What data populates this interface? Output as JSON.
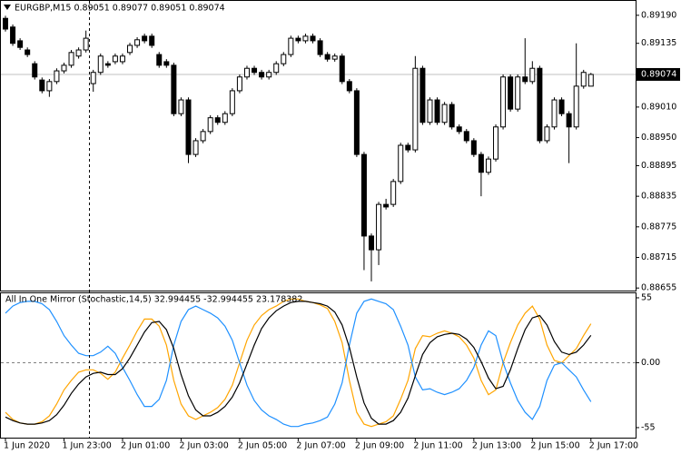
{
  "chart_data": [
    {
      "type": "candlestick",
      "title": "EURGBP,M15  0.89051 0.89077 0.89051 0.89074",
      "open": [
        0.89184,
        0.89167,
        0.8914,
        0.89122,
        0.89095,
        0.89063,
        0.89042,
        0.8906,
        0.89081,
        0.89092,
        0.8911,
        0.89122,
        0.89056,
        0.89078,
        0.89095,
        0.89099,
        0.89099,
        0.89117,
        0.89131,
        0.89149,
        0.89149,
        0.89113,
        0.89099,
        0.89092,
        0.88997,
        0.89024,
        0.88917,
        0.88944,
        0.88962,
        0.88989,
        0.8898,
        0.88997,
        0.89042,
        0.89069,
        0.89086,
        0.89078,
        0.89069,
        0.89078,
        0.89095,
        0.89113,
        0.89145,
        0.8914,
        0.89149,
        0.8914,
        0.89113,
        0.89104,
        0.8911,
        0.8906,
        0.89042,
        0.88917,
        0.88757,
        0.8873,
        0.88819,
        0.88819,
        0.88864,
        0.88935,
        0.88926,
        0.89086,
        0.8898,
        0.89024,
        0.8898,
        0.89015,
        0.88971,
        0.88962,
        0.88944,
        0.88917,
        0.88882,
        0.88908,
        0.88971,
        0.89069,
        0.89006,
        0.89069,
        0.8906,
        0.89086,
        0.88944,
        0.88971,
        0.89024,
        0.88997,
        0.88971,
        0.89051,
        0.89051
      ],
      "high": [
        0.89189,
        0.89172,
        0.89145,
        0.89127,
        0.891,
        0.89068,
        0.89065,
        0.89086,
        0.89097,
        0.89122,
        0.89127,
        0.8916,
        0.89083,
        0.89115,
        0.891,
        0.89115,
        0.89115,
        0.89136,
        0.89147,
        0.89154,
        0.89154,
        0.89118,
        0.89104,
        0.89097,
        0.89029,
        0.89029,
        0.88949,
        0.88967,
        0.88994,
        0.88994,
        0.89002,
        0.89047,
        0.89074,
        0.89091,
        0.89091,
        0.89083,
        0.89083,
        0.891,
        0.89118,
        0.8915,
        0.8915,
        0.89154,
        0.89154,
        0.89145,
        0.89118,
        0.89115,
        0.89115,
        0.89065,
        0.89047,
        0.88922,
        0.88762,
        0.88824,
        0.8883,
        0.88869,
        0.8894,
        0.8894,
        0.8911,
        0.89091,
        0.89029,
        0.89029,
        0.8902,
        0.8902,
        0.88976,
        0.88967,
        0.88949,
        0.88922,
        0.88913,
        0.88976,
        0.89074,
        0.89074,
        0.89074,
        0.89145,
        0.891,
        0.89091,
        0.88976,
        0.89029,
        0.89029,
        0.89002,
        0.89135,
        0.89083,
        0.89077
      ],
      "low": [
        0.89158,
        0.8913,
        0.89122,
        0.89108,
        0.89064,
        0.89037,
        0.8903,
        0.89055,
        0.89076,
        0.89087,
        0.89105,
        0.89117,
        0.8904,
        0.89073,
        0.89087,
        0.89094,
        0.89094,
        0.89112,
        0.89126,
        0.89135,
        0.89126,
        0.89087,
        0.89087,
        0.88992,
        0.88992,
        0.889,
        0.88912,
        0.88939,
        0.88957,
        0.88975,
        0.88975,
        0.88992,
        0.89037,
        0.89064,
        0.89073,
        0.89064,
        0.89064,
        0.89073,
        0.8909,
        0.89108,
        0.89135,
        0.89135,
        0.89135,
        0.89108,
        0.89099,
        0.89099,
        0.89055,
        0.89037,
        0.88912,
        0.8869,
        0.88668,
        0.887,
        0.88809,
        0.88814,
        0.88859,
        0.88921,
        0.88921,
        0.88975,
        0.88975,
        0.88975,
        0.88975,
        0.88966,
        0.88957,
        0.88939,
        0.88912,
        0.88835,
        0.88877,
        0.88903,
        0.88966,
        0.89001,
        0.89001,
        0.89055,
        0.89055,
        0.88939,
        0.88939,
        0.88966,
        0.88992,
        0.889,
        0.88966,
        0.89046,
        0.89051
      ],
      "close": [
        0.89163,
        0.89135,
        0.89127,
        0.89113,
        0.89069,
        0.89042,
        0.8906,
        0.89081,
        0.89092,
        0.89117,
        0.89122,
        0.89145,
        0.89078,
        0.8911,
        0.89092,
        0.8911,
        0.8911,
        0.89131,
        0.89142,
        0.8914,
        0.89131,
        0.89092,
        0.89092,
        0.88997,
        0.89024,
        0.88917,
        0.88944,
        0.88962,
        0.88989,
        0.8898,
        0.88997,
        0.89042,
        0.89069,
        0.89086,
        0.89078,
        0.89069,
        0.89078,
        0.89095,
        0.89113,
        0.89145,
        0.8914,
        0.89149,
        0.8914,
        0.89113,
        0.89104,
        0.8911,
        0.8906,
        0.89042,
        0.88917,
        0.88757,
        0.8873,
        0.88819,
        0.88814,
        0.88864,
        0.88935,
        0.88926,
        0.89086,
        0.8898,
        0.89024,
        0.8898,
        0.89015,
        0.88971,
        0.88962,
        0.88944,
        0.88917,
        0.88882,
        0.88908,
        0.88971,
        0.89069,
        0.89006,
        0.89069,
        0.8906,
        0.89086,
        0.88944,
        0.88971,
        0.89024,
        0.88997,
        0.88971,
        0.89051,
        0.89078,
        0.89074
      ],
      "up_color": "#ffffff",
      "down_color": "#000000",
      "price_line": {
        "value": 0.89074,
        "label": "0.89074"
      },
      "ylim": [
        0.8865,
        0.8922
      ],
      "yticks": [
        {
          "value": 0.8919,
          "label": "0.89190"
        },
        {
          "value": 0.89135,
          "label": "0.89135"
        },
        {
          "value": 0.8901,
          "label": "0.89010"
        },
        {
          "value": 0.8895,
          "label": "0.88950"
        },
        {
          "value": 0.88895,
          "label": "0.88895"
        },
        {
          "value": 0.88835,
          "label": "0.88835"
        },
        {
          "value": 0.88775,
          "label": "0.88775"
        },
        {
          "value": 0.88715,
          "label": "0.88715"
        },
        {
          "value": 0.88655,
          "label": "0.88655"
        }
      ],
      "grid": false
    },
    {
      "type": "line",
      "title": "All In One Mirror (Stochastic,14,5) 32.994455 -32.994455 23.178382",
      "categories": [
        "1 Jun 2020",
        null,
        null,
        null,
        null,
        null,
        null,
        null,
        "1 Jun 23:00",
        null,
        null,
        null,
        null,
        null,
        null,
        null,
        "2 Jun 01:00",
        null,
        null,
        null,
        null,
        null,
        null,
        null,
        "2 Jun 03:00",
        null,
        null,
        null,
        null,
        null,
        null,
        null,
        "2 Jun 05:00",
        null,
        null,
        null,
        null,
        null,
        null,
        null,
        "2 Jun 07:00",
        null,
        null,
        null,
        null,
        null,
        null,
        null,
        "2 Jun 09:00",
        null,
        null,
        null,
        null,
        null,
        null,
        null,
        "2 Jun 11:00",
        null,
        null,
        null,
        null,
        null,
        null,
        null,
        "2 Jun 13:00",
        null,
        null,
        null,
        null,
        null,
        null,
        null,
        "2 Jun 15:00",
        null,
        null,
        null,
        null,
        null,
        null,
        null,
        "2 Jun 17:00"
      ],
      "series": [
        {
          "color": "#ffa500",
          "values": [
            -42,
            -48,
            -51,
            -52,
            -52,
            -50,
            -45,
            -35,
            -23,
            -15,
            -8,
            -6,
            -6,
            -9,
            -14,
            -8,
            4,
            15,
            27,
            37,
            37,
            31,
            15,
            -15,
            -35,
            -45,
            -48,
            -45,
            -42,
            -38,
            -31,
            -19,
            0,
            19,
            32,
            40,
            45,
            48,
            52,
            54,
            54,
            52,
            51,
            49,
            46,
            35,
            17,
            -15,
            -42,
            -52,
            -54,
            -52,
            -50,
            -45,
            -31,
            -15,
            12,
            23,
            22,
            25,
            27,
            25,
            22,
            15,
            4,
            -15,
            -27,
            -23,
            0,
            17,
            32,
            42,
            48,
            37,
            15,
            2,
            0,
            6,
            12,
            23,
            32.994455
          ]
        },
        {
          "color": "#1e90ff",
          "values": [
            42,
            48,
            51,
            52,
            52,
            50,
            45,
            35,
            23,
            15,
            8,
            6,
            6,
            9,
            14,
            8,
            -4,
            -15,
            -27,
            -37,
            -37,
            -31,
            -15,
            15,
            35,
            45,
            48,
            45,
            42,
            38,
            31,
            19,
            0,
            -19,
            -32,
            -40,
            -45,
            -48,
            -52,
            -54,
            -54,
            -52,
            -51,
            -49,
            -46,
            -35,
            -17,
            15,
            42,
            52,
            54,
            52,
            50,
            45,
            31,
            15,
            -12,
            -23,
            -22,
            -25,
            -27,
            -25,
            -22,
            -15,
            -4,
            15,
            27,
            23,
            0,
            -17,
            -32,
            -42,
            -48,
            -37,
            -15,
            -2,
            0,
            -6,
            -12,
            -23,
            -32.994455
          ]
        },
        {
          "color": "#000000",
          "values": [
            -46,
            -49,
            -51,
            -52,
            -52,
            -51,
            -49,
            -44,
            -36,
            -26,
            -18,
            -12,
            -9,
            -8,
            -10,
            -10,
            -5,
            4,
            15,
            26,
            34,
            35,
            28,
            12,
            -10,
            -28,
            -40,
            -45,
            -45,
            -42,
            -37,
            -29,
            -17,
            -1,
            15,
            29,
            38,
            44,
            48,
            51,
            52,
            52,
            51,
            50,
            48,
            43,
            32,
            13,
            -12,
            -34,
            -47,
            -52,
            -52,
            -49,
            -42,
            -30,
            -11,
            7,
            17,
            22,
            24,
            25,
            24,
            20,
            13,
            1,
            -13,
            -22,
            -20,
            -6,
            12,
            28,
            38,
            40,
            32,
            18,
            9,
            7,
            9,
            15,
            23.178382
          ]
        }
      ],
      "ylim": [
        -63.5,
        59.6
      ],
      "yticks": [
        55,
        {
          "value": 0,
          "label": "0.00"
        },
        -55
      ],
      "grid": false
    }
  ]
}
